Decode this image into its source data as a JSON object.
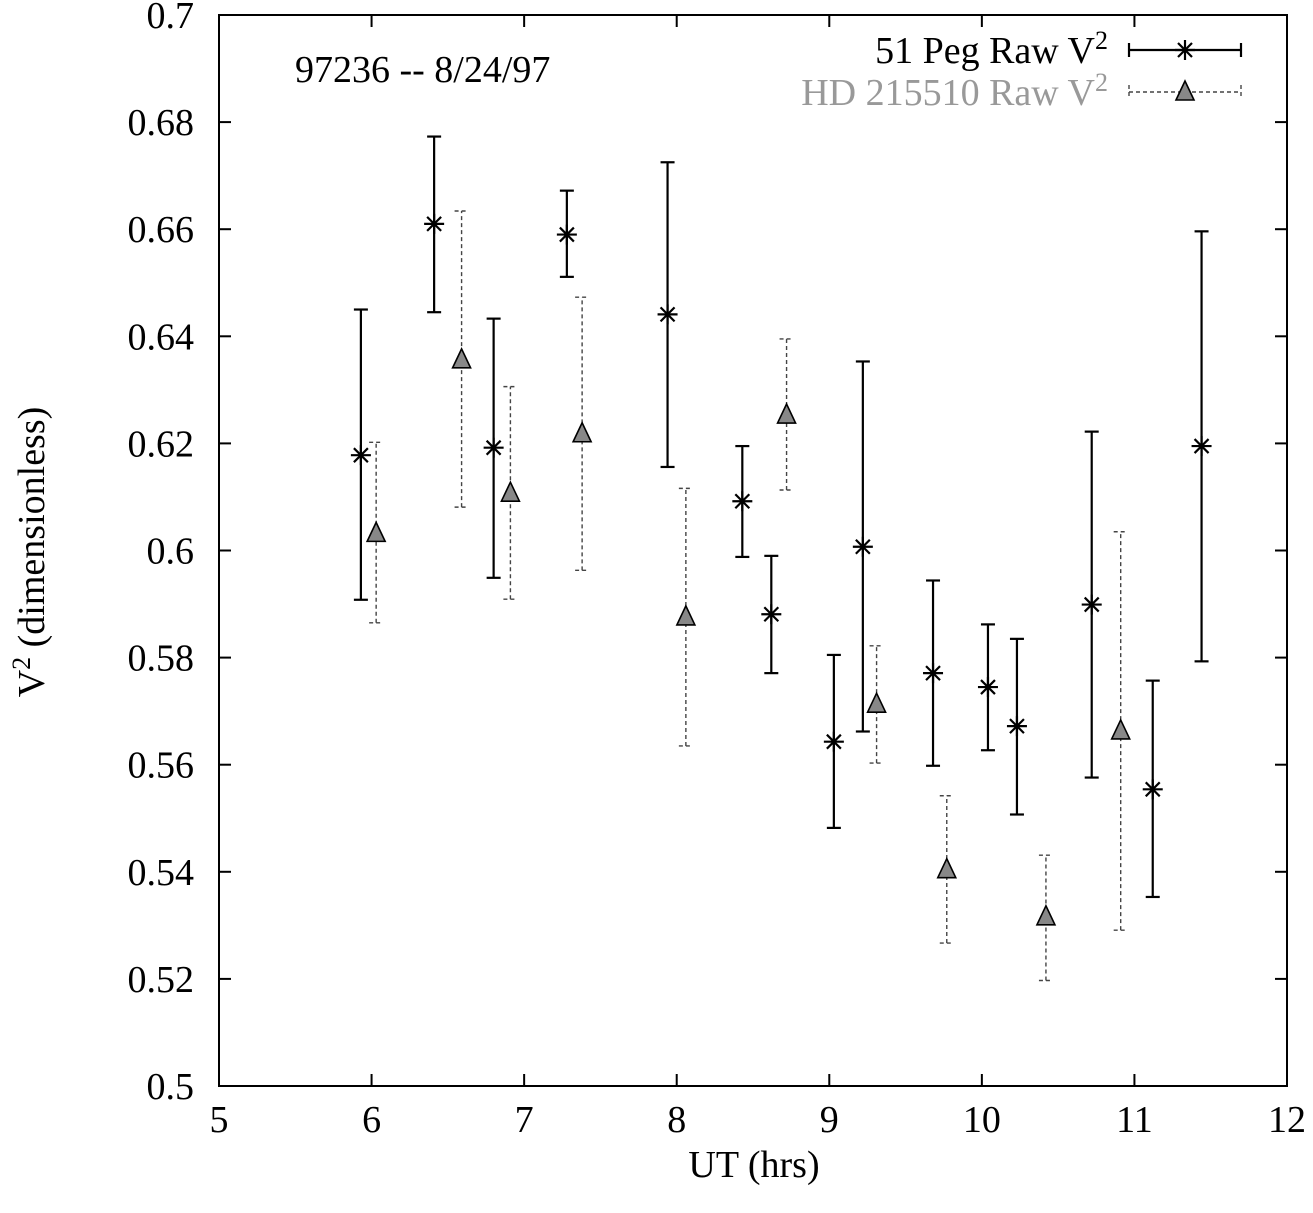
{
  "chart_data": {
    "type": "scatter",
    "title": "",
    "annotation": "97236 -- 8/24/97",
    "xlabel": "UT (hrs)",
    "ylabel": "V2 (dimensionless)",
    "ylabel_parts": {
      "base": "V",
      "sup": "2",
      "rest": " (dimensionless)"
    },
    "xlim": [
      5,
      12
    ],
    "ylim": [
      0.5,
      0.7
    ],
    "x_ticks": [
      5,
      6,
      7,
      8,
      9,
      10,
      11,
      12
    ],
    "x_tick_labels": [
      "5",
      "6",
      "7",
      "8",
      "9",
      "10",
      "11",
      "12"
    ],
    "y_ticks": [
      0.5,
      0.52,
      0.54,
      0.56,
      0.58,
      0.6,
      0.62,
      0.64,
      0.66,
      0.68,
      0.7
    ],
    "y_tick_labels": [
      "0.5",
      "0.52",
      "0.54",
      "0.56",
      "0.58",
      "0.6",
      "0.62",
      "0.64",
      "0.66",
      "0.68",
      "0.7"
    ],
    "grid": false,
    "legend_position": "top-right",
    "series": [
      {
        "name": "51 Peg Raw V2",
        "label_base": "51 Peg Raw V",
        "label_sup": "2",
        "marker": "asterisk",
        "line_style": "solid",
        "color": "#000000",
        "points": [
          {
            "x": 5.93,
            "y": 0.6178,
            "ylo": 0.5908,
            "yhi": 0.645
          },
          {
            "x": 6.41,
            "y": 0.661,
            "ylo": 0.6445,
            "yhi": 0.6773
          },
          {
            "x": 6.8,
            "y": 0.6192,
            "ylo": 0.5949,
            "yhi": 0.6433
          },
          {
            "x": 7.28,
            "y": 0.659,
            "ylo": 0.6511,
            "yhi": 0.6672
          },
          {
            "x": 7.94,
            "y": 0.6441,
            "ylo": 0.6156,
            "yhi": 0.6725
          },
          {
            "x": 8.43,
            "y": 0.6092,
            "ylo": 0.5988,
            "yhi": 0.6195
          },
          {
            "x": 8.62,
            "y": 0.5881,
            "ylo": 0.5771,
            "yhi": 0.599
          },
          {
            "x": 9.03,
            "y": 0.5643,
            "ylo": 0.5482,
            "yhi": 0.5805
          },
          {
            "x": 9.22,
            "y": 0.6007,
            "ylo": 0.5662,
            "yhi": 0.6353
          },
          {
            "x": 9.68,
            "y": 0.5771,
            "ylo": 0.5598,
            "yhi": 0.5944
          },
          {
            "x": 10.04,
            "y": 0.5745,
            "ylo": 0.5627,
            "yhi": 0.5862
          },
          {
            "x": 10.23,
            "y": 0.5672,
            "ylo": 0.5507,
            "yhi": 0.5835
          },
          {
            "x": 10.72,
            "y": 0.5899,
            "ylo": 0.5576,
            "yhi": 0.6222
          },
          {
            "x": 11.12,
            "y": 0.5554,
            "ylo": 0.5353,
            "yhi": 0.5757
          },
          {
            "x": 11.44,
            "y": 0.6195,
            "ylo": 0.5793,
            "yhi": 0.6596
          }
        ]
      },
      {
        "name": "HD 215510 Raw V2",
        "label_base": "HD 215510 Raw V",
        "label_sup": "2",
        "marker": "triangle",
        "line_style": "dashed",
        "color": "#999999",
        "points": [
          {
            "x": 6.03,
            "y": 0.6032,
            "ylo": 0.5865,
            "yhi": 0.6202
          },
          {
            "x": 6.59,
            "y": 0.6356,
            "ylo": 0.6081,
            "yhi": 0.6634
          },
          {
            "x": 6.91,
            "y": 0.6107,
            "ylo": 0.5909,
            "yhi": 0.6306
          },
          {
            "x": 7.38,
            "y": 0.6218,
            "ylo": 0.5963,
            "yhi": 0.6473
          },
          {
            "x": 8.06,
            "y": 0.5876,
            "ylo": 0.5635,
            "yhi": 0.6116
          },
          {
            "x": 8.72,
            "y": 0.6253,
            "ylo": 0.6113,
            "yhi": 0.6395
          },
          {
            "x": 9.31,
            "y": 0.5713,
            "ylo": 0.5603,
            "yhi": 0.5822
          },
          {
            "x": 9.77,
            "y": 0.5404,
            "ylo": 0.5267,
            "yhi": 0.5542
          },
          {
            "x": 10.42,
            "y": 0.5316,
            "ylo": 0.5197,
            "yhi": 0.5431
          },
          {
            "x": 10.91,
            "y": 0.5663,
            "ylo": 0.5291,
            "yhi": 0.6035
          }
        ]
      }
    ]
  }
}
